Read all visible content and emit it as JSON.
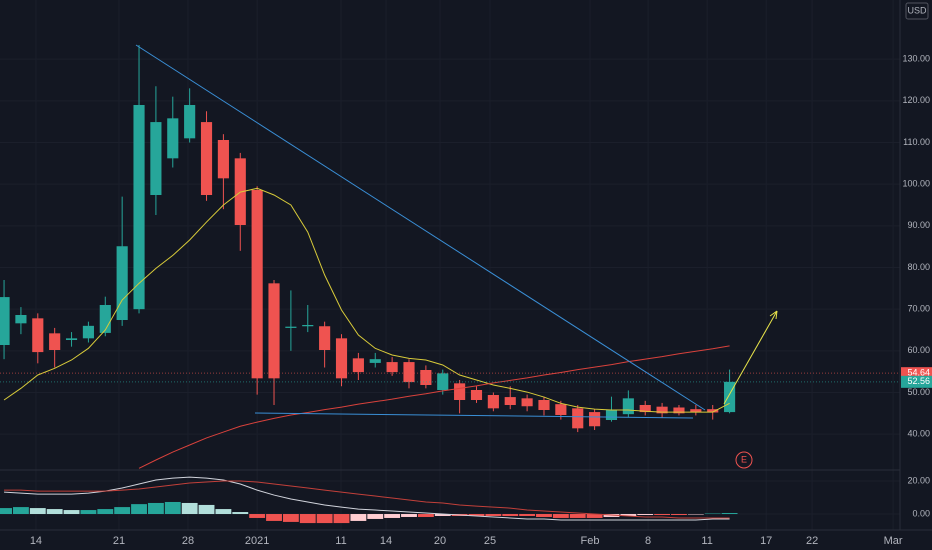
{
  "chart_data": [
    {
      "type": "candlestick",
      "currency": "USD",
      "event_marker": "E",
      "open": [
        61.4,
        66.6,
        67.8,
        64.2,
        62.6,
        63.0,
        64.3,
        67.4,
        70.0,
        97.4,
        106.2,
        111.0,
        114.9,
        110.6,
        106.2,
        98.6,
        76.2,
        65.5,
        65.9,
        65.9,
        63.0,
        58.2,
        57.1,
        57.3,
        57.3,
        55.4,
        50.6,
        52.2,
        50.6,
        49.4,
        48.9,
        48.6,
        48.2,
        47.2,
        46.2,
        45.3,
        43.4,
        44.8,
        47.0,
        46.6,
        46.4,
        46.0,
        46.0,
        45.3
      ],
      "high": [
        77.0,
        70.5,
        69.0,
        65.5,
        64.5,
        67.0,
        73.0,
        97.0,
        133.4,
        123.5,
        121.0,
        123.0,
        117.5,
        112.0,
        107.5,
        99.5,
        77.0,
        74.5,
        71.0,
        67.0,
        64.0,
        59.5,
        59.5,
        58.5,
        58.0,
        56.5,
        55.5,
        53.0,
        51.5,
        50.0,
        51.5,
        49.5,
        49.0,
        48.0,
        47.0,
        46.0,
        49.0,
        50.5,
        48.0,
        47.5,
        47.0,
        47.0,
        47.0,
        55.5
      ],
      "low": [
        58.0,
        64.0,
        57.0,
        56.0,
        61.0,
        62.0,
        63.5,
        66.0,
        69.0,
        92.6,
        104.0,
        110.0,
        96.0,
        94.0,
        84.0,
        49.5,
        47.0,
        60.0,
        64.5,
        56.0,
        51.5,
        53.0,
        56.0,
        54.0,
        51.0,
        51.0,
        49.5,
        45.0,
        47.5,
        45.5,
        46.0,
        45.5,
        44.5,
        43.5,
        40.5,
        41.0,
        43.0,
        44.0,
        44.5,
        44.0,
        44.5,
        44.5,
        43.5,
        45.0
      ],
      "close": [
        72.9,
        68.6,
        59.7,
        60.2,
        63.0,
        66.0,
        71.0,
        85.1,
        119.0,
        114.9,
        115.8,
        119.0,
        97.4,
        101.4,
        90.2,
        53.4,
        53.4,
        65.8,
        66.2,
        60.2,
        53.4,
        54.9,
        58.0,
        54.9,
        52.5,
        51.8,
        54.6,
        48.2,
        48.2,
        46.2,
        47.0,
        46.7,
        45.8,
        44.6,
        41.4,
        41.9,
        45.8,
        48.6,
        45.3,
        45.0,
        45.0,
        45.3,
        45.2,
        52.56
      ],
      "up_color": "#26a69a",
      "down_color": "#ef5350",
      "lines": [
        {
          "color": "#d8cb3a",
          "values": [
            48.2,
            51.0,
            54.2,
            55.8,
            57.8,
            60.6,
            65.0,
            72.2,
            76.2,
            79.8,
            82.9,
            86.6,
            90.9,
            95.0,
            98.1,
            99.0,
            97.4,
            95.0,
            88.5,
            78.2,
            69.8,
            63.8,
            60.6,
            59.0,
            58.2,
            57.8,
            56.6,
            54.2,
            53.0,
            51.8,
            51.0,
            50.1,
            48.9,
            47.4,
            46.5,
            46.0,
            45.8,
            45.8,
            45.5,
            45.3,
            45.3,
            45.3,
            45.3,
            47.4
          ]
        },
        {
          "color": "#d9423c",
          "values": [
            null,
            null,
            null,
            null,
            null,
            null,
            null,
            null,
            31.8,
            33.8,
            35.7,
            37.4,
            39.1,
            40.5,
            41.9,
            42.9,
            43.8,
            44.6,
            45.2,
            45.9,
            46.5,
            47.2,
            47.8,
            48.4,
            49.1,
            49.7,
            50.4,
            51.0,
            51.6,
            52.3,
            52.9,
            53.5,
            54.2,
            54.8,
            55.5,
            56.1,
            56.7,
            57.4,
            58.0,
            58.6,
            59.3,
            59.9,
            60.5,
            61.2
          ]
        }
      ],
      "price_labels": [
        {
          "value": 54.64,
          "label": "54.64",
          "color": "#ef5350"
        },
        {
          "value": 52.56,
          "label": "52.56",
          "color": "#26a69a"
        }
      ],
      "xlim": [
        -0.24,
        53.1
      ],
      "xticks": [
        {
          "value": 1.89,
          "label": "14"
        },
        {
          "value": 6.81,
          "label": "21"
        },
        {
          "value": 10.9,
          "label": "28"
        },
        {
          "value": 15.0,
          "label": "2021"
        },
        {
          "value": 19.97,
          "label": "11"
        },
        {
          "value": 22.64,
          "label": "14"
        },
        {
          "value": 25.84,
          "label": "20"
        },
        {
          "value": 28.8,
          "label": "25"
        },
        {
          "value": 34.73,
          "label": "Feb"
        },
        {
          "value": 38.17,
          "label": "8"
        },
        {
          "value": 41.67,
          "label": "11"
        },
        {
          "value": 45.17,
          "label": "17"
        },
        {
          "value": 47.89,
          "label": "22"
        },
        {
          "value": 52.69,
          "label": "Mar"
        }
      ],
      "ylim": [
        31.4,
        144.2
      ],
      "yticks": [
        {
          "value": 40,
          "label": "40.00"
        },
        {
          "value": 50,
          "label": "50.00"
        },
        {
          "value": 60,
          "label": "60.00"
        },
        {
          "value": 70,
          "label": "70.00"
        },
        {
          "value": 80,
          "label": "80.00"
        },
        {
          "value": 90,
          "label": "90.00"
        },
        {
          "value": 100,
          "label": "100.00"
        },
        {
          "value": 110,
          "label": "110.00"
        },
        {
          "value": 120,
          "label": "120.00"
        },
        {
          "value": 130,
          "label": "130.00"
        }
      ],
      "grid": true
    },
    {
      "type": "macd",
      "histogram": [
        3.6,
        4.2,
        3.6,
        3.0,
        2.4,
        2.4,
        3.0,
        4.2,
        6.0,
        6.7,
        7.3,
        6.7,
        5.5,
        3.0,
        1.2,
        -2.4,
        -4.2,
        -4.8,
        -5.5,
        -5.5,
        -5.5,
        -4.2,
        -3.0,
        -2.4,
        -1.8,
        -1.8,
        -1.2,
        -1.2,
        -1.2,
        -1.2,
        -1.2,
        -1.2,
        -1.8,
        -2.4,
        -2.4,
        -2.4,
        -1.8,
        -1.2,
        -0.6,
        -0.6,
        -0.6,
        -0.3,
        0.3,
        0.6
      ],
      "histogram_colors": {
        "rising_above": "#26a69a",
        "falling_above": "#b2dfdb",
        "falling_below": "#ef5350",
        "rising_below": "#ffcdd2"
      },
      "lines": [
        {
          "color": "#d1d4dc",
          "values": [
            13.3,
            12.7,
            12.1,
            12.1,
            12.1,
            12.7,
            13.9,
            15.8,
            18.2,
            20.6,
            21.8,
            22.4,
            21.8,
            20.6,
            18.2,
            14.5,
            11.5,
            9.1,
            7.3,
            5.5,
            4.2,
            3.0,
            2.4,
            1.8,
            1.2,
            0.6,
            0,
            -0.6,
            -1.2,
            -1.8,
            -2.4,
            -3.0,
            -3.0,
            -3.6,
            -3.6,
            -3.6,
            -3.6,
            -3.6,
            -3.6,
            -3.6,
            -3.6,
            -3.6,
            -3.0,
            -3.0
          ]
        },
        {
          "color": "#c2403a",
          "values": [
            14.5,
            14.5,
            13.9,
            13.9,
            13.9,
            13.9,
            13.9,
            14.5,
            15.2,
            16.4,
            17.6,
            18.8,
            19.4,
            20.0,
            20.0,
            19.4,
            18.2,
            17.0,
            15.8,
            14.5,
            13.3,
            12.1,
            10.9,
            9.7,
            8.5,
            7.3,
            6.7,
            5.5,
            4.8,
            4.2,
            3.6,
            2.4,
            1.8,
            1.2,
            0.6,
            0,
            -0.6,
            -1.2,
            -1.8,
            -1.8,
            -2.4,
            -2.4,
            -2.4,
            -2.4
          ]
        }
      ],
      "ylim": [
        -9.7,
        26.7
      ],
      "yticks": [
        {
          "value": 0,
          "label": "0.00"
        },
        {
          "value": 20,
          "label": "20.00"
        }
      ],
      "grid": true
    }
  ]
}
